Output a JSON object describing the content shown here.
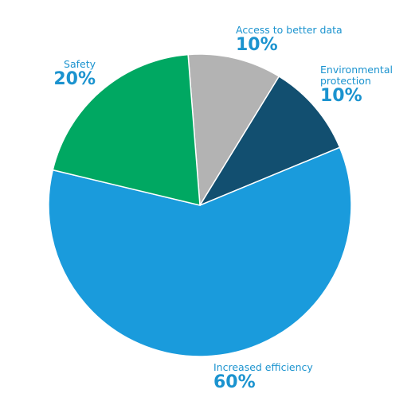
{
  "chart_data": {
    "type": "pie",
    "categories": [
      "Access to better data",
      "Environmental protection",
      "Increased efficiency",
      "Safety"
    ],
    "values": [
      10,
      10,
      60,
      20
    ],
    "value_labels": [
      "10%",
      "10%",
      "60%",
      "20%"
    ],
    "colors": [
      "#b3b3b3",
      "#124f70",
      "#1a9bdc",
      "#00a862"
    ]
  }
}
